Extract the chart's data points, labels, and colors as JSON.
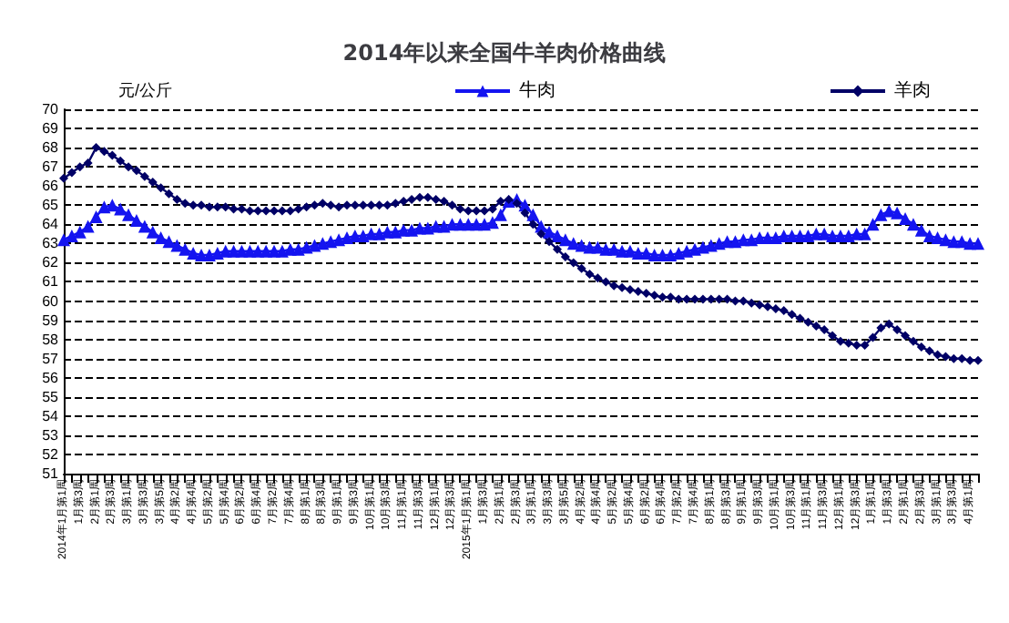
{
  "chart_data": {
    "type": "line",
    "title": "2014年以来全国牛羊肉价格曲线",
    "ylabel": "元/公斤",
    "categories": [
      "2014年1月第1周",
      null,
      "1月第3周",
      null,
      "2月第1周",
      null,
      "2月第3周",
      null,
      "3月第1周",
      null,
      "3月第3周",
      null,
      "3月第5周",
      null,
      "4月第2周",
      null,
      "4月第4周",
      null,
      "5月第2周",
      null,
      "5月第4周",
      null,
      "6月第2周",
      null,
      "6月第4周",
      null,
      "7月第2周",
      null,
      "7月第4周",
      null,
      "8月第1周",
      null,
      "8月第3周",
      null,
      "9月第1周",
      null,
      "9月第3周",
      null,
      "10月第1周",
      null,
      "10月第3周",
      null,
      "11月第1周",
      null,
      "11月第3周",
      null,
      "12月第1周",
      null,
      "12月第3周",
      null,
      "2015年1月第1周",
      null,
      "1月第3周",
      null,
      "2月第1周",
      null,
      "2月第3周",
      null,
      "3月第1周",
      null,
      "3月第3周",
      null,
      "3月第5周",
      null,
      "4月第2周",
      null,
      "4月第4周",
      null,
      "5月第2周",
      null,
      "5月第4周",
      null,
      "6月第2周",
      null,
      "6月第4周",
      null,
      "7月第2周",
      null,
      "7月第4周",
      null,
      "8月第1周",
      null,
      "8月第3周",
      null,
      "9月第1周",
      null,
      "9月第3周",
      null,
      "10月第1周",
      null,
      "10月第3周",
      null,
      "11月第1周",
      null,
      "11月第3周",
      null,
      "12月第1周",
      null,
      "12月第3周",
      null,
      "1月第1周",
      null,
      "1月第3周",
      null,
      "2月第1周",
      null,
      "2月第3周",
      null,
      "3月第1周",
      null,
      "3月第3周",
      null,
      "4月第1周",
      null
    ],
    "series": [
      {
        "name": "牛肉",
        "color": "#1414f0",
        "marker": "triangle",
        "values": [
          63.2,
          63.4,
          63.6,
          63.9,
          64.4,
          64.9,
          65.0,
          64.8,
          64.5,
          64.2,
          63.9,
          63.6,
          63.3,
          63.1,
          62.9,
          62.7,
          62.5,
          62.4,
          62.4,
          62.5,
          62.6,
          62.6,
          62.6,
          62.6,
          62.6,
          62.6,
          62.6,
          62.6,
          62.7,
          62.7,
          62.8,
          62.9,
          63.0,
          63.1,
          63.2,
          63.3,
          63.4,
          63.4,
          63.5,
          63.5,
          63.6,
          63.6,
          63.7,
          63.7,
          63.8,
          63.8,
          63.9,
          63.9,
          64.0,
          64.0,
          64.0,
          64.0,
          64.0,
          64.1,
          64.5,
          65.2,
          65.3,
          65.0,
          64.5,
          63.9,
          63.6,
          63.4,
          63.2,
          63.0,
          62.9,
          62.8,
          62.8,
          62.7,
          62.7,
          62.6,
          62.6,
          62.5,
          62.5,
          62.4,
          62.4,
          62.4,
          62.5,
          62.6,
          62.7,
          62.8,
          62.9,
          63.0,
          63.1,
          63.1,
          63.2,
          63.2,
          63.3,
          63.3,
          63.3,
          63.4,
          63.4,
          63.4,
          63.4,
          63.5,
          63.5,
          63.4,
          63.4,
          63.4,
          63.5,
          63.5,
          64.0,
          64.5,
          64.7,
          64.6,
          64.3,
          64.0,
          63.7,
          63.4,
          63.3,
          63.2,
          63.1,
          63.1,
          63.0,
          63.0
        ]
      },
      {
        "name": "羊肉",
        "color": "#000066",
        "marker": "diamond",
        "values": [
          66.4,
          66.7,
          67.0,
          67.2,
          68.0,
          67.8,
          67.6,
          67.3,
          67.0,
          66.8,
          66.5,
          66.2,
          65.9,
          65.6,
          65.3,
          65.1,
          65.0,
          65.0,
          64.9,
          64.9,
          64.9,
          64.8,
          64.8,
          64.7,
          64.7,
          64.7,
          64.7,
          64.7,
          64.7,
          64.8,
          64.9,
          65.0,
          65.1,
          65.0,
          64.9,
          65.0,
          65.0,
          65.0,
          65.0,
          65.0,
          65.0,
          65.1,
          65.2,
          65.3,
          65.4,
          65.4,
          65.3,
          65.2,
          65.0,
          64.8,
          64.7,
          64.7,
          64.7,
          64.8,
          65.2,
          65.3,
          65.1,
          64.6,
          64.0,
          63.5,
          63.1,
          62.7,
          62.3,
          62.0,
          61.7,
          61.4,
          61.2,
          61.0,
          60.8,
          60.7,
          60.6,
          60.5,
          60.4,
          60.3,
          60.2,
          60.2,
          60.1,
          60.1,
          60.1,
          60.1,
          60.1,
          60.1,
          60.1,
          60.0,
          60.0,
          59.9,
          59.8,
          59.7,
          59.6,
          59.5,
          59.3,
          59.1,
          58.9,
          58.7,
          58.5,
          58.2,
          57.9,
          57.8,
          57.7,
          57.7,
          58.1,
          58.6,
          58.8,
          58.5,
          58.2,
          57.9,
          57.6,
          57.4,
          57.2,
          57.1,
          57.0,
          57.0,
          56.9,
          56.9
        ]
      }
    ],
    "ylim": [
      51,
      70
    ],
    "yticks": [
      51,
      52,
      53,
      54,
      55,
      56,
      57,
      58,
      59,
      60,
      61,
      62,
      63,
      64,
      65,
      66,
      67,
      68,
      69,
      70
    ],
    "grid": "y",
    "legend": "top right",
    "line_style": "solid"
  }
}
